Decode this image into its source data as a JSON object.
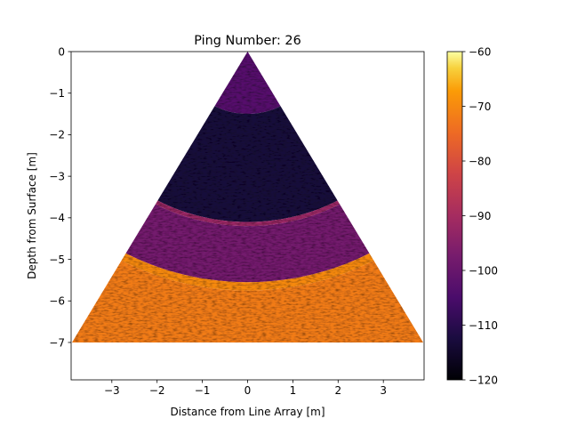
{
  "chart_data": {
    "type": "heatmap",
    "title": "Ping Number: 26",
    "xlabel": "Distance from Line Array [m]",
    "ylabel": "Depth from Surface [m]",
    "xlim": [
      -3.9,
      3.9
    ],
    "ylim": [
      -7.9,
      0
    ],
    "xticks": [
      -3,
      -2,
      -1,
      0,
      1,
      2,
      3
    ],
    "xtick_labels": [
      "−3",
      "−2",
      "−1",
      "0",
      "1",
      "2",
      "3"
    ],
    "yticks": [
      0,
      -1,
      -2,
      -3,
      -4,
      -5,
      -6,
      -7
    ],
    "ytick_labels": [
      "0",
      "−1",
      "−2",
      "−3",
      "−4",
      "−5",
      "−6",
      "−7"
    ],
    "grid": false,
    "colormap": "inferno",
    "colorbar": {
      "range": [
        -120,
        -60
      ],
      "ticks": [
        -60,
        -70,
        -80,
        -90,
        -100,
        -110,
        -120
      ],
      "tick_labels": [
        "−60",
        "−70",
        "−80",
        "−90",
        "−100",
        "−110",
        "−120"
      ]
    },
    "sector": {
      "apex": [
        0,
        0
      ],
      "half_angle_deg": 29,
      "max_depth": -7
    },
    "layers": [
      {
        "from_range": 0,
        "to_range": 1.5,
        "level_db": -103
      },
      {
        "from_range": 1.5,
        "to_range": 4.1,
        "level_db": -113
      },
      {
        "from_range": 4.1,
        "to_range": 4.2,
        "level_db": -92
      },
      {
        "from_range": 4.2,
        "to_range": 5.55,
        "level_db": -98
      },
      {
        "from_range": 5.55,
        "to_range": 5.75,
        "level_db": -70
      },
      {
        "from_range": 5.75,
        "to_range": 9.0,
        "level_db": -72
      }
    ]
  }
}
